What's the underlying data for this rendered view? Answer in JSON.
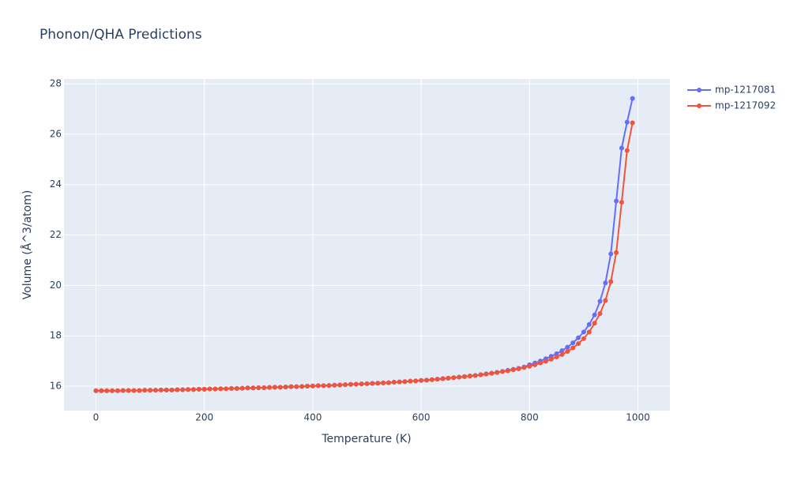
{
  "chart_data": {
    "type": "line",
    "title": "Phonon/QHA Predictions",
    "x_label": "Temperature (K)",
    "y_label": "Volume (Å^3/atom)",
    "x": [
      0,
      10,
      20,
      30,
      40,
      50,
      60,
      70,
      80,
      90,
      100,
      110,
      120,
      130,
      140,
      150,
      160,
      170,
      180,
      190,
      200,
      210,
      220,
      230,
      240,
      250,
      260,
      270,
      280,
      290,
      300,
      310,
      320,
      330,
      340,
      350,
      360,
      370,
      380,
      390,
      400,
      410,
      420,
      430,
      440,
      450,
      460,
      470,
      480,
      490,
      500,
      510,
      520,
      530,
      540,
      550,
      560,
      570,
      580,
      590,
      600,
      610,
      620,
      630,
      640,
      650,
      660,
      670,
      680,
      690,
      700,
      710,
      720,
      730,
      740,
      750,
      760,
      770,
      780,
      790,
      800,
      810,
      820,
      830,
      840,
      850,
      860,
      870,
      880,
      890,
      900,
      910,
      920,
      930,
      940,
      950,
      960,
      970,
      980,
      990
    ],
    "series": [
      {
        "name": "mp-1217081",
        "color": "#636efa",
        "values": [
          15.82,
          15.82,
          15.82,
          15.82,
          15.82,
          15.83,
          15.83,
          15.83,
          15.83,
          15.84,
          15.84,
          15.84,
          15.85,
          15.85,
          15.85,
          15.86,
          15.86,
          15.87,
          15.87,
          15.88,
          15.88,
          15.89,
          15.89,
          15.9,
          15.9,
          15.91,
          15.91,
          15.92,
          15.93,
          15.93,
          15.94,
          15.94,
          15.95,
          15.96,
          15.96,
          15.97,
          15.98,
          15.98,
          15.99,
          16.0,
          16.01,
          16.02,
          16.02,
          16.03,
          16.04,
          16.05,
          16.06,
          16.07,
          16.08,
          16.09,
          16.1,
          16.11,
          16.12,
          16.13,
          16.14,
          16.16,
          16.17,
          16.18,
          16.2,
          16.21,
          16.23,
          16.24,
          16.26,
          16.28,
          16.3,
          16.32,
          16.34,
          16.36,
          16.38,
          16.41,
          16.43,
          16.46,
          16.49,
          16.52,
          16.55,
          16.59,
          16.63,
          16.67,
          16.71,
          16.76,
          16.85,
          16.92,
          17.0,
          17.09,
          17.19,
          17.29,
          17.41,
          17.55,
          17.72,
          17.92,
          18.15,
          18.45,
          18.83,
          19.37,
          20.1,
          21.25,
          23.35,
          25.45,
          26.48,
          27.42
        ]
      },
      {
        "name": "mp-1217092",
        "color": "#ef553b",
        "values": [
          15.82,
          15.82,
          15.82,
          15.82,
          15.82,
          15.83,
          15.83,
          15.83,
          15.83,
          15.84,
          15.84,
          15.84,
          15.85,
          15.85,
          15.85,
          15.86,
          15.86,
          15.87,
          15.87,
          15.88,
          15.88,
          15.89,
          15.89,
          15.9,
          15.9,
          15.91,
          15.91,
          15.92,
          15.93,
          15.93,
          15.94,
          15.94,
          15.95,
          15.96,
          15.96,
          15.97,
          15.98,
          15.98,
          15.99,
          16.0,
          16.01,
          16.02,
          16.02,
          16.03,
          16.04,
          16.05,
          16.06,
          16.07,
          16.08,
          16.09,
          16.1,
          16.11,
          16.12,
          16.13,
          16.14,
          16.16,
          16.17,
          16.18,
          16.2,
          16.21,
          16.23,
          16.24,
          16.26,
          16.28,
          16.3,
          16.32,
          16.34,
          16.36,
          16.38,
          16.4,
          16.42,
          16.45,
          16.48,
          16.51,
          16.54,
          16.58,
          16.61,
          16.65,
          16.69,
          16.74,
          16.79,
          16.85,
          16.92,
          16.99,
          17.07,
          17.16,
          17.26,
          17.38,
          17.52,
          17.69,
          17.89,
          18.15,
          18.5,
          18.88,
          19.4,
          20.15,
          21.3,
          23.3,
          25.35,
          26.45
        ]
      }
    ],
    "xlim": [
      -59,
      1059
    ],
    "ylim": [
      15.03,
      28.19
    ],
    "xticks": [
      0,
      200,
      400,
      600,
      800,
      1000
    ],
    "yticks": [
      16,
      18,
      20,
      22,
      24,
      26,
      28
    ],
    "grid": true,
    "legend": "top-right"
  }
}
